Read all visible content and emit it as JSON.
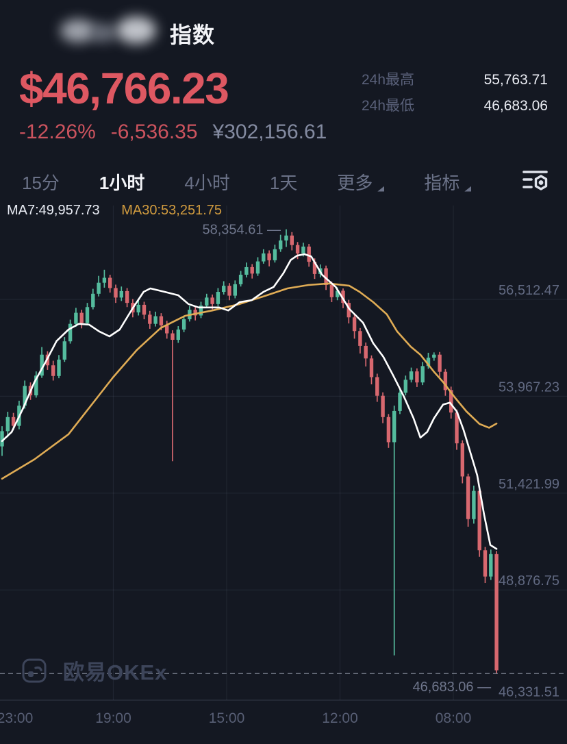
{
  "header": {
    "title": "指数"
  },
  "price_panel": {
    "price": "$46,766.23",
    "change_pct": "-12.26%",
    "change_abs": "-6,536.35",
    "price_cny": "¥302,156.61",
    "stats": [
      {
        "label": "24h最高",
        "value": "55,763.71"
      },
      {
        "label": "24h最低",
        "value": "46,683.06"
      }
    ]
  },
  "toolbar": {
    "tabs": [
      {
        "label": "15分",
        "active": false,
        "dropdown": false
      },
      {
        "label": "1小时",
        "active": true,
        "dropdown": false
      },
      {
        "label": "4小时",
        "active": false,
        "dropdown": false
      },
      {
        "label": "1天",
        "active": false,
        "dropdown": false
      },
      {
        "label": "更多",
        "active": false,
        "dropdown": true
      },
      {
        "label": "指标",
        "active": false,
        "dropdown": true
      }
    ],
    "settings_icon": "chart-settings-icon"
  },
  "watermark": {
    "text": "欧易OKEx"
  },
  "chart_data": {
    "type": "candlestick",
    "interval": "1小时",
    "title": "指数 1小时 K线",
    "legend": {
      "ma7_label": "MA7:49,957.73",
      "ma30_label": "MA30:53,251.75"
    },
    "y_axis": {
      "labels": [
        {
          "text": "56,512.47",
          "price": 56512.47,
          "gridline": true
        },
        {
          "text": "53,967.23",
          "price": 53967.23,
          "gridline": true
        },
        {
          "text": "51,421.99",
          "price": 51421.99,
          "gridline": true
        },
        {
          "text": "48,876.75",
          "price": 48876.75,
          "gridline": true
        },
        {
          "text": "46,331.51",
          "price": 46331.51,
          "gridline": false
        }
      ]
    },
    "x_axis": {
      "labels": [
        "23:00",
        "19:00",
        "15:00",
        "12:00",
        "08:00"
      ]
    },
    "last_price_line": {
      "price": 46683.06,
      "style": "dashed"
    },
    "annotations": {
      "high": {
        "text": "58,354.61 —",
        "price": 58354.61,
        "candle": 50
      },
      "low": {
        "text": "46,683.06 —",
        "price": 46683.06,
        "candle": 87
      }
    },
    "colors": {
      "background": "#141822",
      "up": "#55bc9e",
      "down": "#d8686f",
      "ma7_line": "#ffffff",
      "ma30_line": "#e0ac55",
      "price_accent": "#de5862",
      "grid": "rgba(148,158,190,0.10)",
      "axis_separator": "rgba(148,158,190,0.16)",
      "dashed_line": "#a7adbd",
      "axis_text": "#616981",
      "annotation_text": "#6f768c",
      "time_text": "#575e74"
    },
    "candles": [
      [
        52650,
        53180,
        52400,
        53050
      ],
      [
        53050,
        53560,
        52890,
        53420
      ],
      [
        53420,
        53530,
        53080,
        53190
      ],
      [
        53190,
        53850,
        53100,
        53720
      ],
      [
        53720,
        54380,
        53640,
        54240
      ],
      [
        54240,
        54330,
        53870,
        53990
      ],
      [
        53990,
        54620,
        53930,
        54510
      ],
      [
        54510,
        55260,
        54450,
        55060
      ],
      [
        55060,
        55150,
        54660,
        54780
      ],
      [
        54780,
        54900,
        54380,
        54500
      ],
      [
        54500,
        55050,
        54440,
        54930
      ],
      [
        54930,
        55520,
        54870,
        55410
      ],
      [
        55410,
        55980,
        55350,
        55870
      ],
      [
        55870,
        56290,
        55790,
        56160
      ],
      [
        56160,
        56240,
        55750,
        55890
      ],
      [
        55890,
        56420,
        55830,
        56310
      ],
      [
        56310,
        56790,
        56250,
        56660
      ],
      [
        56660,
        57130,
        56590,
        56950
      ],
      [
        56950,
        57290,
        56820,
        57080
      ],
      [
        57080,
        57160,
        56690,
        56810
      ],
      [
        56810,
        56900,
        56420,
        56560
      ],
      [
        56560,
        56850,
        56470,
        56730
      ],
      [
        56730,
        56810,
        56310,
        56420
      ],
      [
        56420,
        56520,
        56040,
        56170
      ],
      [
        56170,
        56480,
        56090,
        56370
      ],
      [
        56370,
        56450,
        55990,
        56110
      ],
      [
        56110,
        56210,
        55740,
        55870
      ],
      [
        55870,
        56190,
        55800,
        56070
      ],
      [
        56070,
        56150,
        55700,
        55830
      ],
      [
        55830,
        55950,
        55480,
        55620
      ],
      [
        55620,
        55700,
        52260,
        55450
      ],
      [
        55450,
        55810,
        55370,
        55720
      ],
      [
        55720,
        56090,
        55650,
        55990
      ],
      [
        55990,
        56340,
        55930,
        56240
      ],
      [
        56240,
        56330,
        55960,
        56090
      ],
      [
        56090,
        56450,
        56020,
        56350
      ],
      [
        56350,
        56660,
        56290,
        56560
      ],
      [
        56560,
        56640,
        56250,
        56390
      ],
      [
        56390,
        56810,
        56330,
        56710
      ],
      [
        56710,
        56990,
        56640,
        56870
      ],
      [
        56870,
        56940,
        56490,
        56610
      ],
      [
        56610,
        57010,
        56540,
        56910
      ],
      [
        56910,
        57260,
        56850,
        57160
      ],
      [
        57160,
        57480,
        57090,
        57360
      ],
      [
        57360,
        57440,
        57060,
        57190
      ],
      [
        57190,
        57620,
        57130,
        57510
      ],
      [
        57510,
        57830,
        57450,
        57720
      ],
      [
        57720,
        57800,
        57380,
        57540
      ],
      [
        57540,
        57950,
        57480,
        57830
      ],
      [
        57830,
        58210,
        57760,
        58060
      ],
      [
        58060,
        58354.61,
        57890,
        58190
      ],
      [
        58190,
        58280,
        57800,
        57940
      ],
      [
        57940,
        58020,
        57570,
        57720
      ],
      [
        57720,
        58000,
        57640,
        57900
      ],
      [
        57900,
        57970,
        57370,
        57500
      ],
      [
        57500,
        57590,
        57050,
        57180
      ],
      [
        57180,
        57430,
        57090,
        57330
      ],
      [
        57330,
        57400,
        56760,
        56890
      ],
      [
        56890,
        56980,
        56440,
        56570
      ],
      [
        56570,
        56830,
        56490,
        56740
      ],
      [
        56740,
        56800,
        56280,
        56420
      ],
      [
        56420,
        56500,
        55880,
        56040
      ],
      [
        56040,
        56120,
        55480,
        55680
      ],
      [
        55680,
        55760,
        55090,
        55290
      ],
      [
        55290,
        55380,
        54750,
        54960
      ],
      [
        54960,
        55040,
        54280,
        54470
      ],
      [
        54470,
        54560,
        53820,
        53980
      ],
      [
        53980,
        54070,
        53260,
        53420
      ],
      [
        53420,
        53500,
        52610,
        52760
      ],
      [
        52760,
        53720,
        47160,
        53580
      ],
      [
        53580,
        54180,
        53500,
        54060
      ],
      [
        54060,
        54510,
        53990,
        54400
      ],
      [
        54400,
        54720,
        54330,
        54620
      ],
      [
        54620,
        54700,
        54210,
        54330
      ],
      [
        54330,
        54870,
        54260,
        54760
      ],
      [
        54760,
        55110,
        54690,
        54980
      ],
      [
        54980,
        55120,
        54900,
        55060
      ],
      [
        55060,
        55130,
        54480,
        54610
      ],
      [
        54610,
        54680,
        53980,
        54130
      ],
      [
        54130,
        54220,
        53380,
        53540
      ],
      [
        53540,
        53620,
        52560,
        52730
      ],
      [
        52730,
        52810,
        51680,
        51860
      ],
      [
        51860,
        51930,
        50540,
        50740
      ],
      [
        50740,
        51620,
        50620,
        51480
      ],
      [
        51480,
        51550,
        49750,
        49920
      ],
      [
        49920,
        50010,
        49060,
        49230
      ],
      [
        49230,
        49940,
        49140,
        49820
      ],
      [
        49820,
        49900,
        46683.06,
        46766.23
      ]
    ],
    "ma7": {
      "label": "MA7:49,957.73",
      "points": [
        [
          0,
          52790
        ],
        [
          1.7,
          53030
        ],
        [
          3.6,
          53620
        ],
        [
          5.7,
          54340
        ],
        [
          7.7,
          54880
        ],
        [
          9.6,
          55420
        ],
        [
          11.7,
          55720
        ],
        [
          13.5,
          55870
        ],
        [
          15.3,
          55850
        ],
        [
          17.1,
          55670
        ],
        [
          18.9,
          55540
        ],
        [
          20.7,
          55720
        ],
        [
          22.9,
          56260
        ],
        [
          24.9,
          56710
        ],
        [
          26.1,
          56800
        ],
        [
          28.6,
          56710
        ],
        [
          31,
          56620
        ],
        [
          32.8,
          56390
        ],
        [
          34.6,
          56300
        ],
        [
          38.2,
          56300
        ],
        [
          39.8,
          56220
        ],
        [
          41.8,
          56440
        ],
        [
          43.9,
          56490
        ],
        [
          46,
          56710
        ],
        [
          47.8,
          56840
        ],
        [
          49.5,
          57200
        ],
        [
          50.8,
          57550
        ],
        [
          51.9,
          57660
        ],
        [
          53.2,
          57700
        ],
        [
          54.4,
          57640
        ],
        [
          56.3,
          57160
        ],
        [
          58.7,
          56840
        ],
        [
          61.1,
          56260
        ],
        [
          63.5,
          55900
        ],
        [
          65.3,
          55360
        ],
        [
          67.1,
          55000
        ],
        [
          68.8,
          54520
        ],
        [
          70.7,
          53960
        ],
        [
          72.4,
          53390
        ],
        [
          73.6,
          52880
        ],
        [
          74.8,
          53030
        ],
        [
          76,
          53390
        ],
        [
          77.6,
          53750
        ],
        [
          78.8,
          53800
        ],
        [
          80,
          53570
        ],
        [
          81.2,
          53080
        ],
        [
          82.4,
          52490
        ],
        [
          83.6,
          51890
        ],
        [
          84.8,
          50870
        ],
        [
          85.9,
          50060
        ],
        [
          87,
          49957.73
        ]
      ]
    },
    "ma30": {
      "label": "MA30:53,251.75",
      "points": [
        [
          0,
          51800
        ],
        [
          5.7,
          52310
        ],
        [
          11.7,
          52970
        ],
        [
          19.5,
          54460
        ],
        [
          23.7,
          55180
        ],
        [
          27.9,
          55760
        ],
        [
          32.2,
          56080
        ],
        [
          37,
          56220
        ],
        [
          41.8,
          56390
        ],
        [
          46.6,
          56620
        ],
        [
          50.2,
          56800
        ],
        [
          53.9,
          56890
        ],
        [
          57.5,
          56930
        ],
        [
          61.1,
          56870
        ],
        [
          62.9,
          56710
        ],
        [
          65.3,
          56440
        ],
        [
          67.7,
          56120
        ],
        [
          69.5,
          55670
        ],
        [
          71.9,
          55270
        ],
        [
          73.6,
          55060
        ],
        [
          76,
          54610
        ],
        [
          77.6,
          54340
        ],
        [
          79.7,
          53930
        ],
        [
          81.7,
          53570
        ],
        [
          84,
          53240
        ],
        [
          85.7,
          53140
        ],
        [
          87,
          53251.75
        ]
      ]
    }
  }
}
